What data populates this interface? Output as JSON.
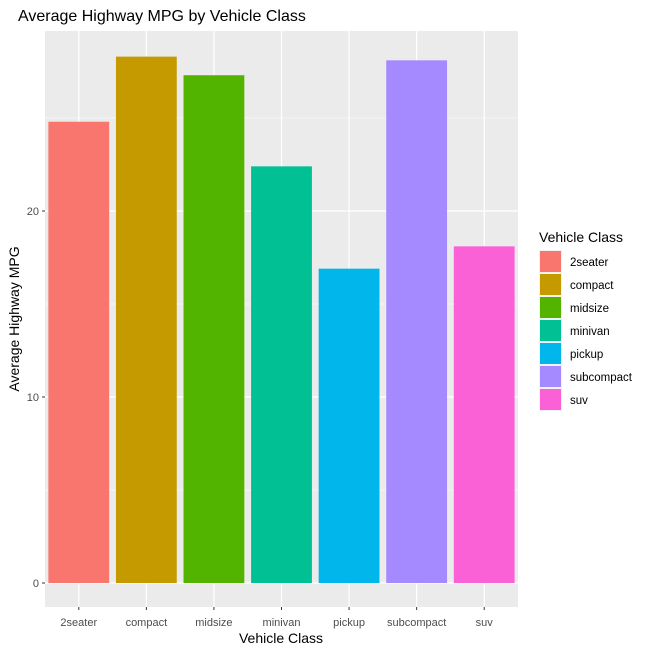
{
  "chart_data": {
    "type": "bar",
    "title": "Average Highway MPG by Vehicle Class",
    "xlabel": "Vehicle Class",
    "ylabel": "Average Highway MPG",
    "categories": [
      "2seater",
      "compact",
      "midsize",
      "minivan",
      "pickup",
      "subcompact",
      "suv"
    ],
    "values": [
      24.8,
      28.3,
      27.3,
      22.4,
      16.9,
      28.1,
      18.1
    ],
    "colors": [
      "#F8766D",
      "#C49A00",
      "#53B400",
      "#00C094",
      "#00B6EB",
      "#A58AFF",
      "#FB61D7"
    ],
    "ylim": [
      0,
      29.7
    ],
    "yticks": [
      0,
      10,
      20
    ],
    "grid": true,
    "panel_background": "#EBEBEB",
    "legend": {
      "title": "Vehicle Class",
      "placement": "right",
      "entries": [
        "2seater",
        "compact",
        "midsize",
        "minivan",
        "pickup",
        "subcompact",
        "suv"
      ]
    }
  }
}
